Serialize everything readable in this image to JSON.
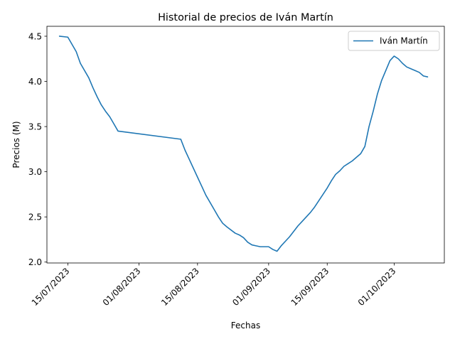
{
  "chart_data": {
    "type": "line",
    "title": "Historial de precios de Iván Martín",
    "xlabel": "Fechas",
    "ylabel": "Precios (M)",
    "x_ticks": [
      "15/07/2023",
      "01/08/2023",
      "15/08/2023",
      "01/09/2023",
      "15/09/2023",
      "01/10/2023"
    ],
    "y_ticks": [
      "2.0",
      "2.5",
      "3.0",
      "3.5",
      "4.0",
      "4.5"
    ],
    "ylim": [
      1.99,
      4.61
    ],
    "xlim": [
      "2023-07-10",
      "2023-10-13"
    ],
    "legend": {
      "position": "top-right"
    },
    "grid": false,
    "series": [
      {
        "name": "Iván Martín",
        "color": "#1f77b4",
        "points": [
          [
            "2023-07-13",
            4.5
          ],
          [
            "2023-07-15",
            4.49
          ],
          [
            "2023-07-17",
            4.33
          ],
          [
            "2023-07-18",
            4.2
          ],
          [
            "2023-07-20",
            4.04
          ],
          [
            "2023-07-21",
            3.93
          ],
          [
            "2023-07-22",
            3.83
          ],
          [
            "2023-07-23",
            3.74
          ],
          [
            "2023-07-24",
            3.67
          ],
          [
            "2023-07-25",
            3.61
          ],
          [
            "2023-07-26",
            3.53
          ],
          [
            "2023-07-27",
            3.45
          ],
          [
            "2023-08-11",
            3.36
          ],
          [
            "2023-08-12",
            3.24
          ],
          [
            "2023-08-13",
            3.14
          ],
          [
            "2023-08-15",
            2.94
          ],
          [
            "2023-08-16",
            2.84
          ],
          [
            "2023-08-17",
            2.74
          ],
          [
            "2023-08-19",
            2.58
          ],
          [
            "2023-08-20",
            2.5
          ],
          [
            "2023-08-21",
            2.43
          ],
          [
            "2023-08-22",
            2.39
          ],
          [
            "2023-08-24",
            2.32
          ],
          [
            "2023-08-25",
            2.3
          ],
          [
            "2023-08-26",
            2.27
          ],
          [
            "2023-08-27",
            2.22
          ],
          [
            "2023-08-28",
            2.19
          ],
          [
            "2023-08-29",
            2.18
          ],
          [
            "2023-08-30",
            2.17
          ],
          [
            "2023-08-31",
            2.17
          ],
          [
            "2023-09-01",
            2.17
          ],
          [
            "2023-09-02",
            2.14
          ],
          [
            "2023-09-03",
            2.12
          ],
          [
            "2023-09-04",
            2.18
          ],
          [
            "2023-09-05",
            2.23
          ],
          [
            "2023-09-06",
            2.28
          ],
          [
            "2023-09-07",
            2.34
          ],
          [
            "2023-09-08",
            2.4
          ],
          [
            "2023-09-09",
            2.45
          ],
          [
            "2023-09-10",
            2.5
          ],
          [
            "2023-09-11",
            2.55
          ],
          [
            "2023-09-12",
            2.61
          ],
          [
            "2023-09-13",
            2.68
          ],
          [
            "2023-09-14",
            2.75
          ],
          [
            "2023-09-15",
            2.82
          ],
          [
            "2023-09-16",
            2.9
          ],
          [
            "2023-09-17",
            2.97
          ],
          [
            "2023-09-18",
            3.01
          ],
          [
            "2023-09-19",
            3.06
          ],
          [
            "2023-09-20",
            3.09
          ],
          [
            "2023-09-21",
            3.12
          ],
          [
            "2023-09-22",
            3.16
          ],
          [
            "2023-09-23",
            3.2
          ],
          [
            "2023-09-24",
            3.28
          ],
          [
            "2023-09-25",
            3.5
          ],
          [
            "2023-09-26",
            3.67
          ],
          [
            "2023-09-27",
            3.86
          ],
          [
            "2023-09-28",
            4.01
          ],
          [
            "2023-09-29",
            4.12
          ],
          [
            "2023-09-30",
            4.23
          ],
          [
            "2023-10-01",
            4.28
          ],
          [
            "2023-10-02",
            4.25
          ],
          [
            "2023-10-03",
            4.2
          ],
          [
            "2023-10-04",
            4.16
          ],
          [
            "2023-10-05",
            4.14
          ],
          [
            "2023-10-06",
            4.12
          ],
          [
            "2023-10-07",
            4.1
          ],
          [
            "2023-10-08",
            4.06
          ],
          [
            "2023-10-09",
            4.05
          ]
        ]
      }
    ]
  }
}
